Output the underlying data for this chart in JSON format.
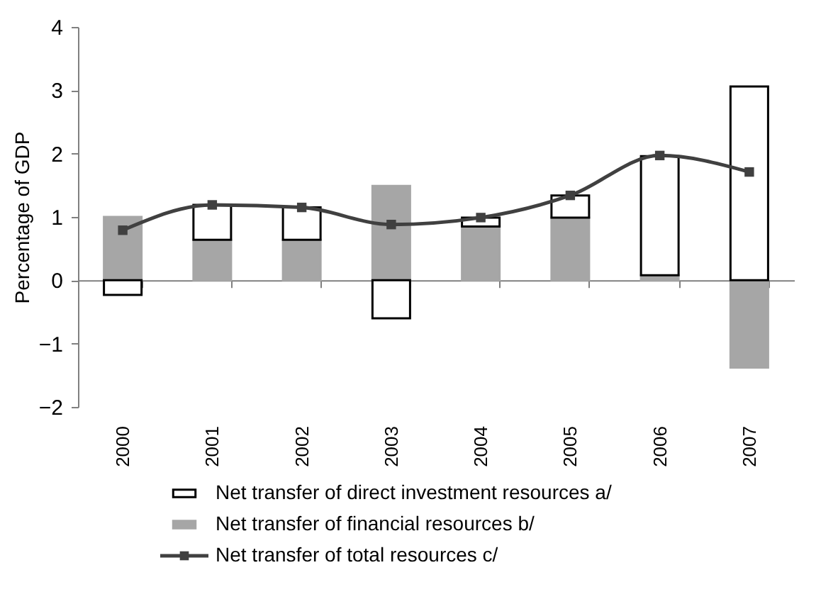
{
  "chart_data": {
    "type": "bar",
    "stacked": true,
    "ylabel": "Percentage of GDP",
    "categories": [
      "2000",
      "2001",
      "2002",
      "2003",
      "2004",
      "2005",
      "2006",
      "2007"
    ],
    "series": [
      {
        "name": "Net transfer of financial resources  b/",
        "color": "#a6a6a6",
        "values": [
          1.0,
          0.64,
          0.64,
          1.49,
          0.85,
          0.99,
          0.08,
          -1.38
        ]
      },
      {
        "name": "Net transfer of direct investment resources  a/",
        "color": "#ffffff",
        "values": [
          -0.23,
          0.55,
          0.51,
          -0.6,
          0.14,
          0.35,
          1.88,
          3.06
        ]
      },
      {
        "name": "Net transfer of total resources  c/",
        "type": "line",
        "color": "#404040",
        "marker": "square",
        "values": [
          0.79,
          1.19,
          1.15,
          0.88,
          0.99,
          1.34,
          1.97,
          1.71
        ]
      }
    ],
    "ylim": [
      -2,
      4
    ],
    "yticks": [
      -2,
      -1,
      0,
      1,
      2,
      3,
      4
    ],
    "legend": "bottom"
  }
}
